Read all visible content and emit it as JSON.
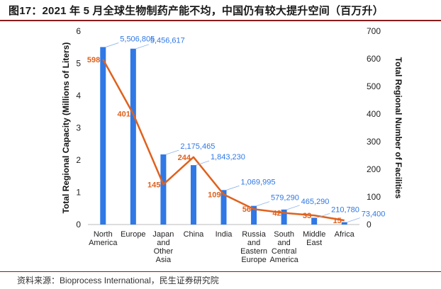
{
  "title": "图17：2021 年 5 月全球生物制药产能不均，中国仍有较大提升空间（百万升）",
  "source": "资料来源：Bioprocess International，民生证券研究院",
  "colors": {
    "bar": "#2f78e6",
    "line": "#e0611c",
    "accent_rule": "#8a1c1c"
  },
  "chart_data": {
    "type": "bar",
    "categories": [
      [
        "North",
        "America"
      ],
      [
        "Europe"
      ],
      [
        "Japan",
        "and",
        "Other",
        "Asia"
      ],
      [
        "China"
      ],
      [
        "India"
      ],
      [
        "Russia",
        "and",
        "Eastern",
        "Europe"
      ],
      [
        "South",
        "and",
        "Central",
        "America"
      ],
      [
        "Middle",
        "East"
      ],
      [
        "Africa"
      ]
    ],
    "series": [
      {
        "type": "bar",
        "axis": "left",
        "values": [
          5.506805,
          5.456617,
          2.175465,
          1.84323,
          1.069995,
          0.57929,
          0.46529,
          0.21078,
          0.0734
        ],
        "labels": [
          "5,506,805",
          "5,456,617",
          "2,175,465",
          "1,843,230",
          "1,069,995",
          "579,290",
          "465,290",
          "210,780",
          "73,400"
        ]
      },
      {
        "type": "line",
        "axis": "right",
        "values": [
          598,
          401,
          145,
          244,
          109,
          56,
          42,
          33,
          15
        ],
        "labels": [
          "598",
          "401",
          "145",
          "244",
          "109",
          "56",
          "42",
          "33",
          "15"
        ]
      }
    ],
    "ylabel": "Total Regional Capacity (Millions of Liters)",
    "y2label": "Total Regional Number of Facilities",
    "ylim": [
      0,
      6
    ],
    "y2lim": [
      0,
      700
    ],
    "yticks": [
      0,
      1,
      2,
      3,
      4,
      5,
      6
    ],
    "y2ticks": [
      0,
      100,
      200,
      300,
      400,
      500,
      600,
      700
    ],
    "grid": false,
    "legend": "none"
  }
}
